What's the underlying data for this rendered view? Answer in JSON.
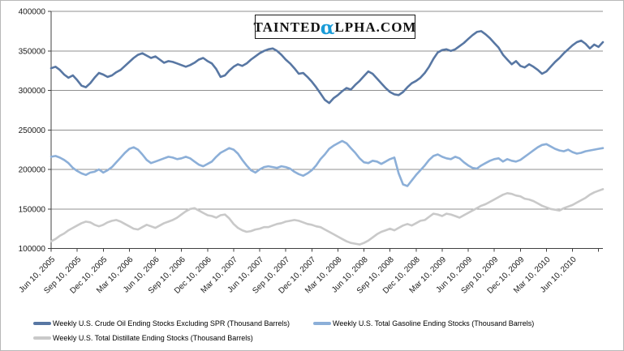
{
  "logo": {
    "text_before": "TAINTED",
    "alpha_glyph": "α",
    "text_after": "LPHA.COM",
    "alpha_color": "#1a9cd8"
  },
  "chart_data": {
    "type": "line",
    "title": "",
    "xlabel": "",
    "ylabel": "",
    "ylim": [
      100000,
      400000
    ],
    "yticks": [
      400000,
      350000,
      300000,
      250000,
      200000,
      150000,
      100000
    ],
    "x_tick_labels": [
      "Jun 10, 2005",
      "Sep 10, 2005",
      "Dec 10, 2005",
      "Mar 10, 2006",
      "Jun 10, 2006",
      "Sep 10, 2006",
      "Dec 10, 2006",
      "Mar 10, 2007",
      "Jun 10, 2007",
      "Sep 10, 2007",
      "Dec 10, 2007",
      "Mar 10, 2008",
      "Jun 10, 2008",
      "Sep 10, 2008",
      "Dec 10, 2008",
      "Mar 10, 2009",
      "Jun 10, 2009",
      "Sep 10, 2009",
      "Dec 10, 2009",
      "Mar 10, 2010",
      "Jun 10, 2010"
    ],
    "grid": "horizontal",
    "grid_color": "#909090",
    "axis_color": "#404040",
    "tick_text_color": "#1a1a1a",
    "legend_position": "bottom",
    "series": [
      {
        "name": "Weekly U.S. Crude Oil Ending Stocks Excluding SPR  (Thousand Barrels)",
        "color": "#5877a3",
        "values": [
          328000,
          330000,
          326000,
          320000,
          316000,
          319000,
          313000,
          306000,
          304000,
          309000,
          316000,
          322000,
          320000,
          317000,
          319000,
          323000,
          326000,
          331000,
          336000,
          341000,
          345000,
          347000,
          344000,
          341000,
          343000,
          339000,
          335000,
          337000,
          336000,
          334000,
          332000,
          330000,
          332000,
          335000,
          339000,
          341000,
          337000,
          334000,
          327000,
          317000,
          319000,
          325000,
          330000,
          333000,
          331000,
          334000,
          339000,
          343000,
          347000,
          350000,
          352000,
          353000,
          350000,
          345000,
          339000,
          334000,
          328000,
          321000,
          322000,
          317000,
          311000,
          304000,
          296000,
          288000,
          284000,
          290000,
          294000,
          299000,
          303000,
          301000,
          307000,
          312000,
          318000,
          324000,
          321000,
          315000,
          309000,
          303000,
          298000,
          295000,
          294000,
          298000,
          304000,
          309000,
          312000,
          316000,
          322000,
          330000,
          340000,
          348000,
          351000,
          352000,
          350000,
          352000,
          356000,
          360000,
          365000,
          370000,
          374000,
          375000,
          371000,
          366000,
          360000,
          354000,
          345000,
          339000,
          333000,
          337000,
          331000,
          329000,
          333000,
          330000,
          326000,
          321000,
          324000,
          330000,
          336000,
          341000,
          347000,
          352000,
          357000,
          361000,
          363000,
          359000,
          353000,
          358000,
          355000,
          361000
        ]
      },
      {
        "name": "Weekly U.S. Total Gasoline Ending Stocks  (Thousand Barrels)",
        "color": "#8cafd8",
        "values": [
          216000,
          217000,
          215000,
          212000,
          208000,
          202000,
          198000,
          195000,
          193000,
          196000,
          197000,
          200000,
          196000,
          199000,
          203000,
          209000,
          215000,
          221000,
          226000,
          228000,
          225000,
          219000,
          212000,
          208000,
          210000,
          212000,
          214000,
          216000,
          215000,
          213000,
          214000,
          216000,
          214000,
          210000,
          206000,
          204000,
          207000,
          210000,
          216000,
          221000,
          224000,
          227000,
          225000,
          220000,
          212000,
          205000,
          199000,
          196000,
          200000,
          203000,
          204000,
          203000,
          202000,
          204000,
          203000,
          201000,
          197000,
          194000,
          192000,
          195000,
          199000,
          205000,
          213000,
          219000,
          226000,
          230000,
          233000,
          236000,
          233000,
          227000,
          221000,
          214000,
          209000,
          208000,
          211000,
          210000,
          207000,
          210000,
          213000,
          215000,
          195000,
          181000,
          179000,
          186000,
          193000,
          199000,
          205000,
          212000,
          217000,
          219000,
          216000,
          214000,
          213000,
          216000,
          214000,
          209000,
          205000,
          202000,
          201000,
          205000,
          208000,
          211000,
          213000,
          214000,
          210000,
          213000,
          211000,
          210000,
          212000,
          216000,
          220000,
          224000,
          228000,
          231000,
          232000,
          229000,
          226000,
          224000,
          223000,
          225000,
          222000,
          220000,
          221000,
          223000,
          224000,
          225000,
          226000,
          227000
        ]
      },
      {
        "name": "Weekly U.S. Total Distillate Ending Stocks  (Thousand Barrels)",
        "color": "#c9c9c9",
        "values": [
          109000,
          112000,
          116000,
          119000,
          123000,
          126000,
          129000,
          132000,
          134000,
          133000,
          130000,
          128000,
          130000,
          133000,
          135000,
          136000,
          134000,
          131000,
          128000,
          125000,
          124000,
          127000,
          130000,
          128000,
          126000,
          129000,
          132000,
          134000,
          136000,
          139000,
          143000,
          147000,
          150000,
          151000,
          148000,
          145000,
          142000,
          141000,
          139000,
          142000,
          143000,
          138000,
          131000,
          126000,
          123000,
          121000,
          122000,
          124000,
          125000,
          127000,
          127000,
          129000,
          131000,
          132000,
          134000,
          135000,
          136000,
          135000,
          133000,
          131000,
          130000,
          128000,
          127000,
          124000,
          121000,
          118000,
          115000,
          112000,
          109000,
          107000,
          106000,
          105000,
          107000,
          110000,
          114000,
          118000,
          121000,
          123000,
          125000,
          123000,
          126000,
          129000,
          131000,
          129000,
          132000,
          135000,
          136000,
          140000,
          144000,
          143000,
          141000,
          144000,
          143000,
          141000,
          139000,
          142000,
          145000,
          148000,
          151000,
          154000,
          156000,
          159000,
          162000,
          165000,
          168000,
          170000,
          169000,
          167000,
          166000,
          163000,
          162000,
          160000,
          157000,
          154000,
          152000,
          150000,
          149000,
          148000,
          151000,
          153000,
          155000,
          158000,
          161000,
          164000,
          168000,
          171000,
          173000,
          175000
        ]
      }
    ]
  }
}
